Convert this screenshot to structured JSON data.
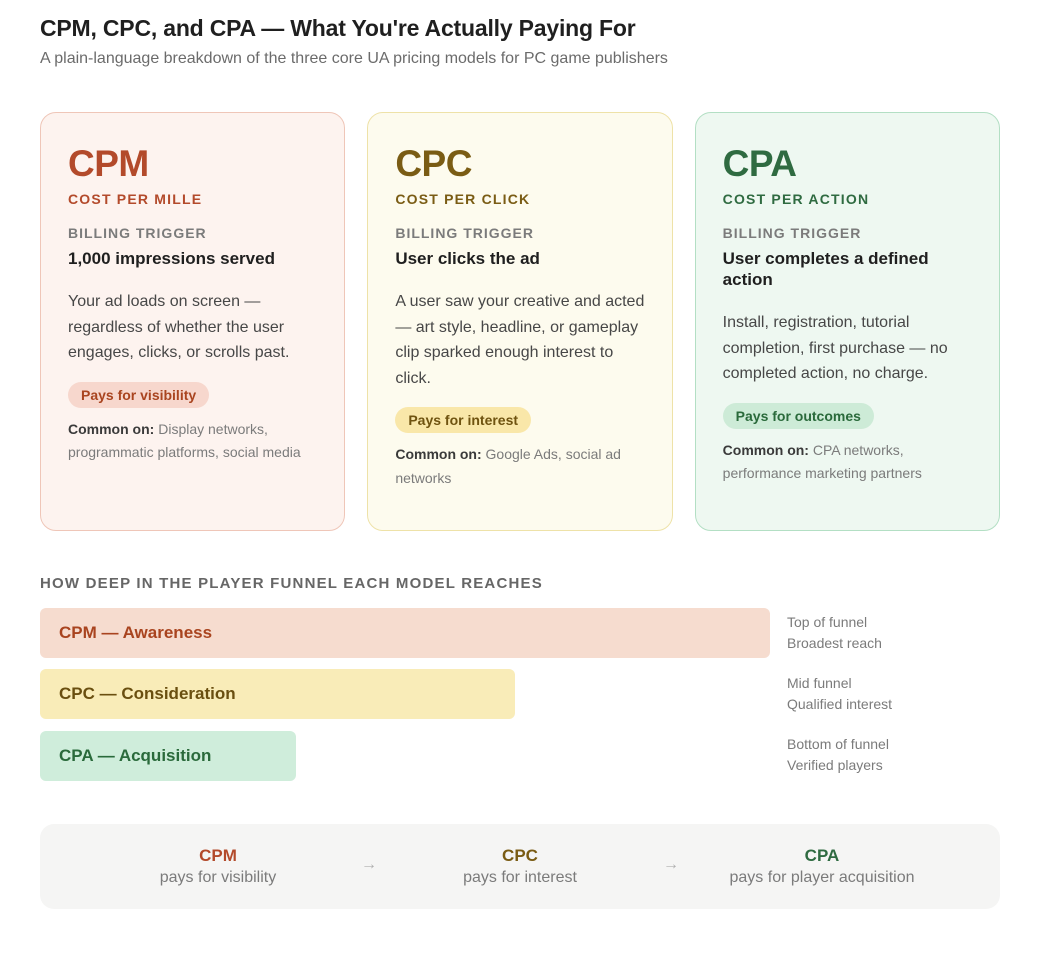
{
  "header": {
    "title": "CPM, CPC, and CPA — What You're Actually Paying For",
    "subtitle": "A plain-language breakdown of the three core UA pricing models for PC game publishers"
  },
  "cards": [
    {
      "abbr": "CPM",
      "full": "COST PER MILLE",
      "trigger_label": "BILLING TRIGGER",
      "trigger_value": "1,000 impressions served",
      "description": "Your ad loads on screen — regardless of whether the user engages, clicks, or scrolls past.",
      "pill": "Pays for visibility",
      "common_label": "Common on:",
      "common_value": "Display networks, programmatic platforms, social media",
      "color": "#b34a2b"
    },
    {
      "abbr": "CPC",
      "full": "COST PER CLICK",
      "trigger_label": "BILLING TRIGGER",
      "trigger_value": "User clicks the ad",
      "description": "A user saw your creative and acted — art style, headline, or gameplay clip sparked enough interest to click.",
      "pill": "Pays for interest",
      "common_label": "Common on:",
      "common_value": "Google Ads, social ad networks",
      "color": "#7a5c14"
    },
    {
      "abbr": "CPA",
      "full": "COST PER ACTION",
      "trigger_label": "BILLING TRIGGER",
      "trigger_value": "User completes a defined action",
      "description": "Install, registration, tutorial completion, first purchase — no completed action, no charge.",
      "pill": "Pays for outcomes",
      "common_label": "Common on:",
      "common_value": "CPA networks, performance marketing partners",
      "color": "#2f6b41"
    }
  ],
  "funnel": {
    "heading": "HOW DEEP IN THE PLAYER FUNNEL EACH MODEL REACHES",
    "rows": [
      {
        "label": "CPM — Awareness",
        "reach": 0.76,
        "note_line1": "Top of funnel",
        "note_line2": "Broadest reach"
      },
      {
        "label": "CPC — Consideration",
        "reach": 0.495,
        "note_line1": "Mid funnel",
        "note_line2": "Qualified interest"
      },
      {
        "label": "CPA — Acquisition",
        "reach": 0.267,
        "note_line1": "Bottom of funnel",
        "note_line2": "Verified players"
      }
    ]
  },
  "summary": {
    "items": [
      {
        "abbr": "CPM",
        "text": "pays for visibility",
        "color": "#b34a2b"
      },
      {
        "abbr": "CPC",
        "text": "pays for interest",
        "color": "#7a5c14"
      },
      {
        "abbr": "CPA",
        "text": "pays for player acquisition",
        "color": "#2f6b41"
      }
    ],
    "arrow": "→"
  }
}
